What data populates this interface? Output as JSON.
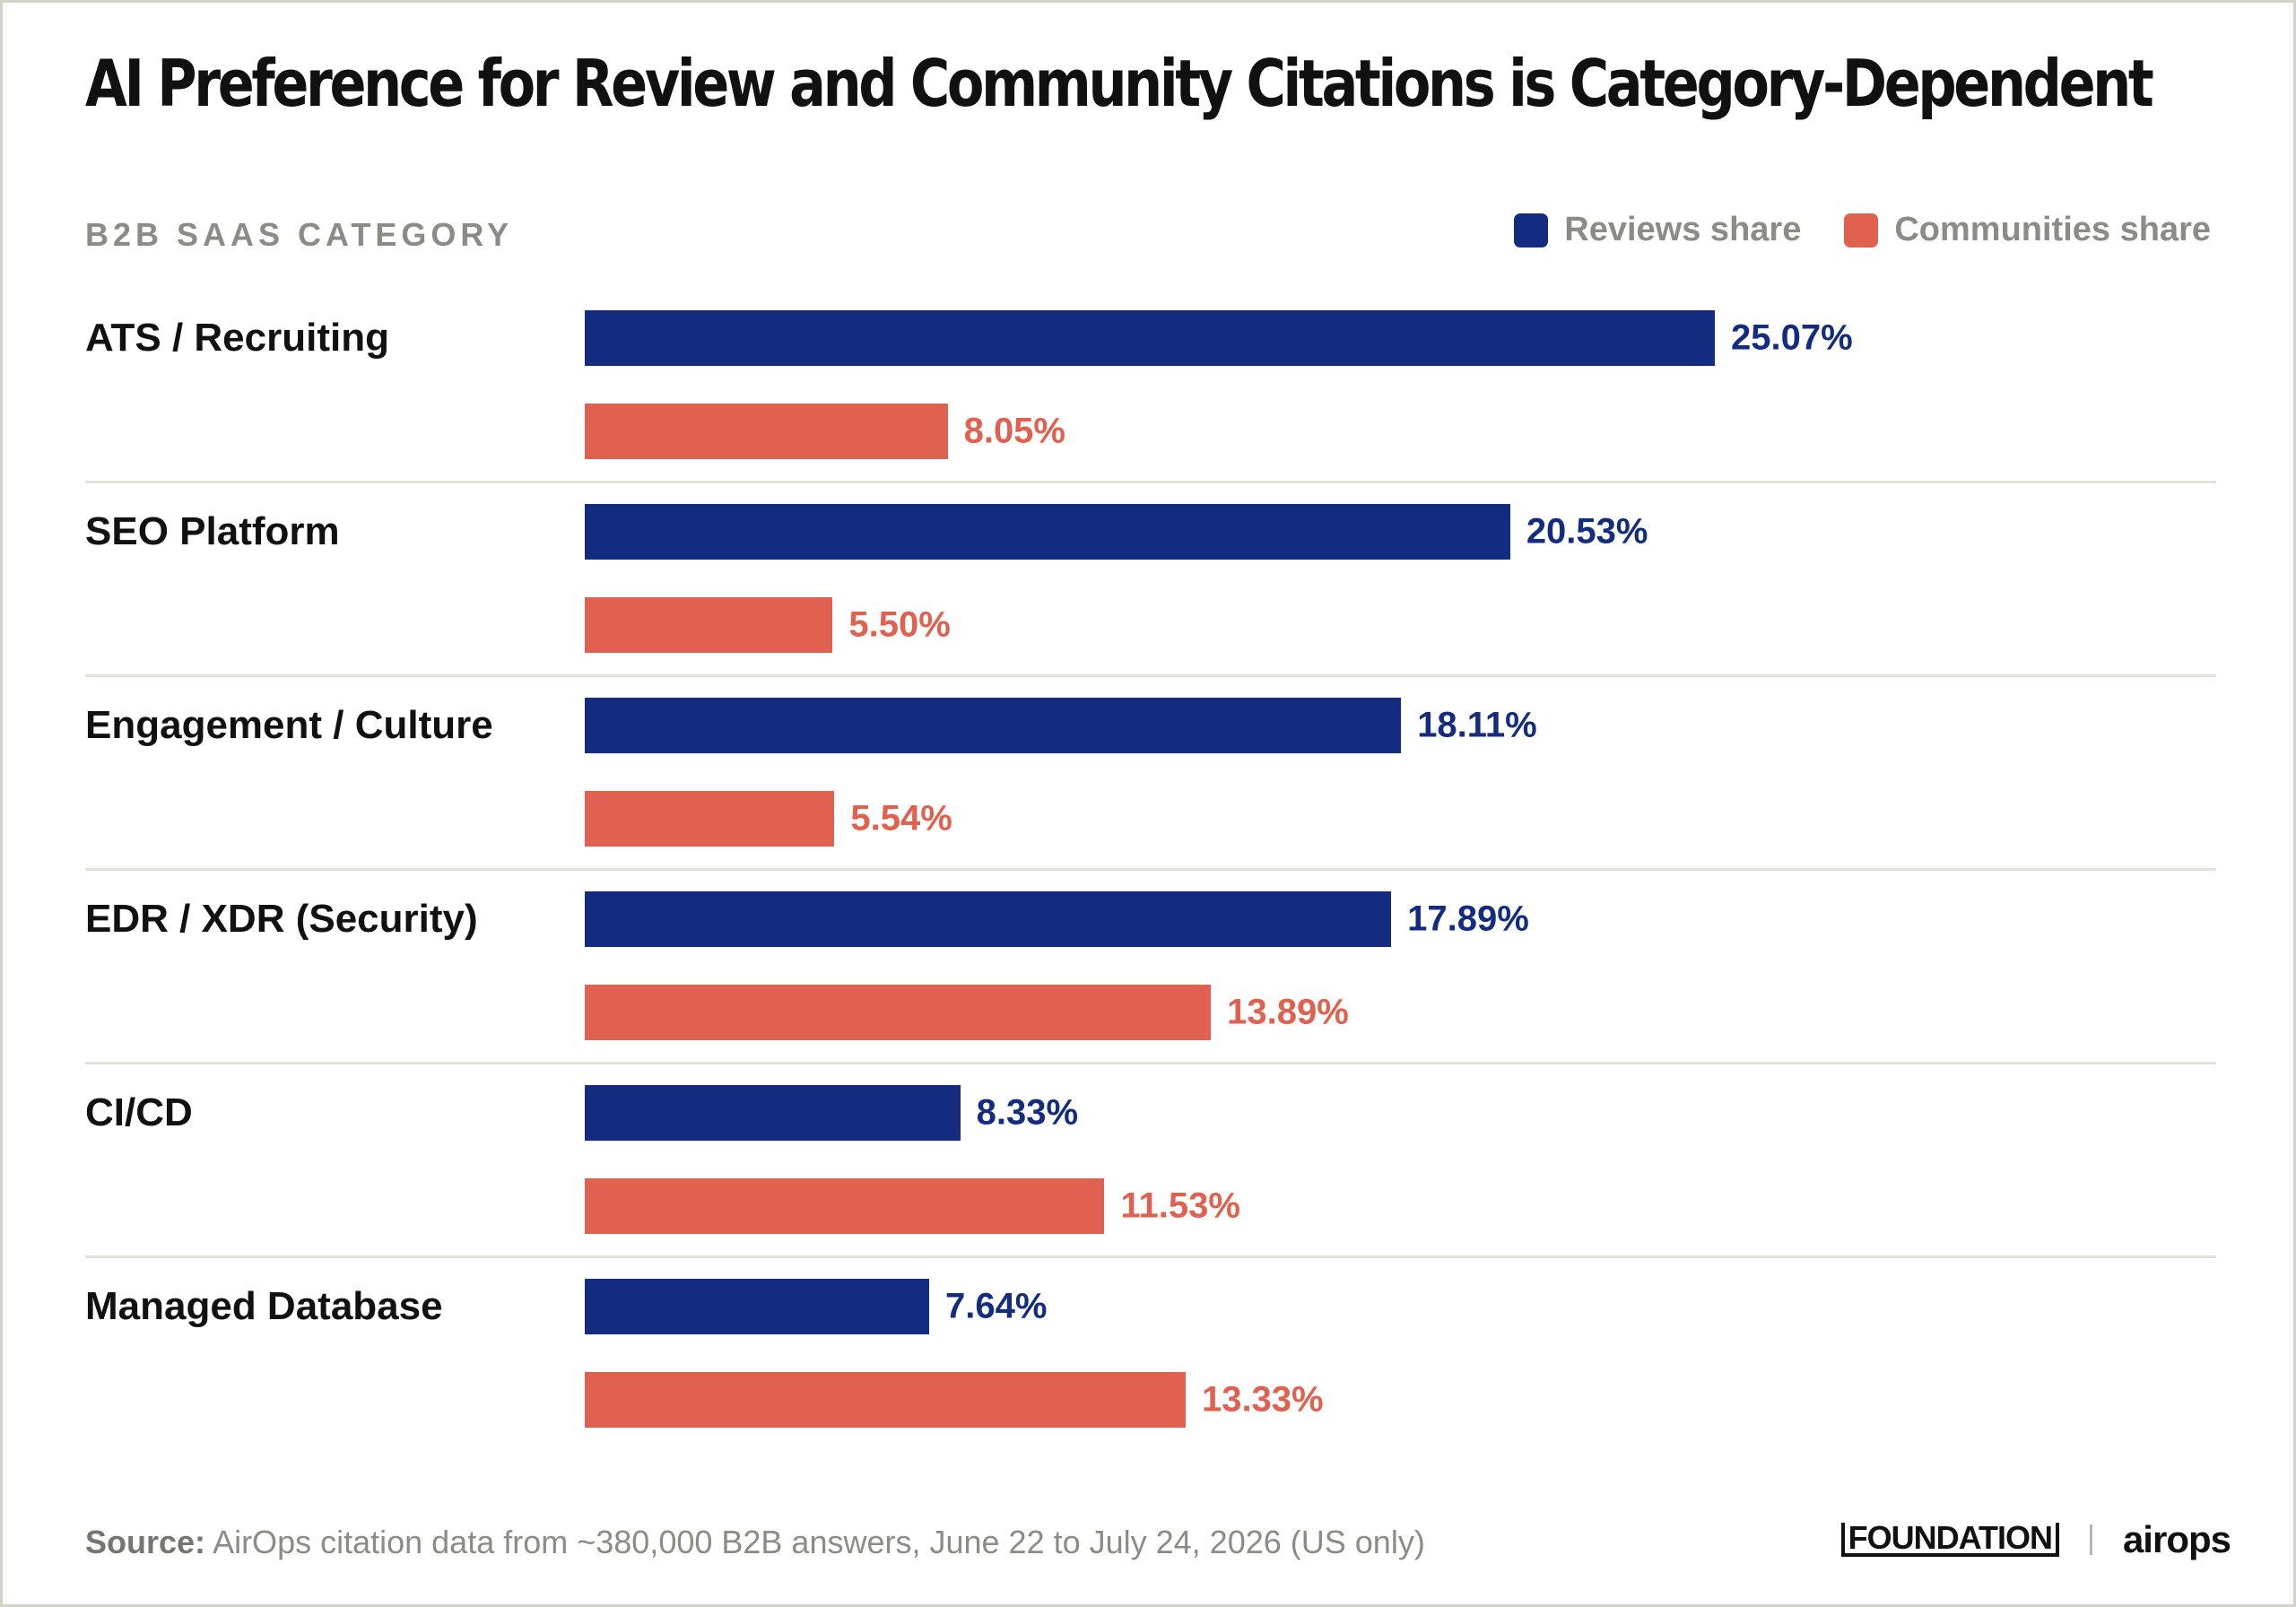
{
  "title": "AI Preference for Review and Community Citations is Category-Dependent",
  "category_header": "B2B SAAS CATEGORY",
  "legend": [
    {
      "label": "Reviews share",
      "color": "#142c80"
    },
    {
      "label": "Communities share",
      "color": "#e06150"
    }
  ],
  "colors": {
    "reviews": "#142c80",
    "communities": "#e06150"
  },
  "chart_data": {
    "type": "bar",
    "orientation": "horizontal",
    "title": "AI Preference for Review and Community Citations is Category-Dependent",
    "ylabel": "B2B SAAS CATEGORY",
    "categories": [
      "ATS / Recruiting",
      "SEO Platform",
      "Engagement / Culture",
      "EDR / XDR (Security)",
      "CI/CD",
      "Managed Database"
    ],
    "series": [
      {
        "name": "Reviews share",
        "values": [
          25.07,
          20.53,
          18.11,
          17.89,
          8.33,
          7.64
        ],
        "labels": [
          "25.07%",
          "20.53%",
          "18.11%",
          "17.89%",
          "8.33%",
          "7.64%"
        ]
      },
      {
        "name": "Communities share",
        "values": [
          8.05,
          5.5,
          5.54,
          13.89,
          11.53,
          13.33
        ],
        "labels": [
          "8.05%",
          "5.50%",
          "5.54%",
          "13.89%",
          "11.53%",
          "13.33%"
        ]
      }
    ],
    "xlim": [
      0,
      25.07
    ],
    "unit": "%",
    "grid": false,
    "legend_position": "top-right"
  },
  "source": {
    "label": "Source:",
    "text": " AirOps citation data from ~380,000 B2B answers, June 22 to July 24, 2026 (US only)"
  },
  "brands": {
    "foundation": "FOUNDATION",
    "airops": "airops"
  }
}
